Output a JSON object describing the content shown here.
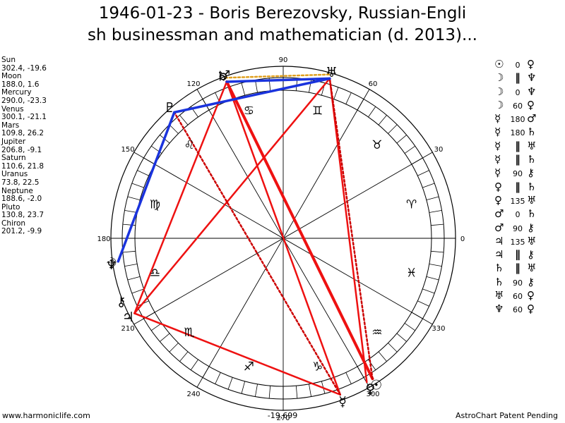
{
  "title": {
    "line1": "1946-01-23 - Boris Berezovsky, Russian-Engli",
    "line2": "sh businessman and mathematician (d. 2013)..."
  },
  "planets": [
    {
      "name": "Sun",
      "coords": "302.4, -19.6",
      "lon": 302.4,
      "glyph": "☉"
    },
    {
      "name": "Moon",
      "coords": "188.0, 1.6",
      "lon": 188.0,
      "glyph": "☽"
    },
    {
      "name": "Mercury",
      "coords": "290.0, -23.3",
      "lon": 290.0,
      "glyph": "☿"
    },
    {
      "name": "Venus",
      "coords": "300.1, -21.1",
      "lon": 300.1,
      "glyph": "♀"
    },
    {
      "name": "Mars",
      "coords": "109.8, 26.2",
      "lon": 109.8,
      "glyph": "♂"
    },
    {
      "name": "Jupiter",
      "coords": "206.8, -9.1",
      "lon": 206.8,
      "glyph": "♃"
    },
    {
      "name": "Saturn",
      "coords": "110.6, 21.8",
      "lon": 110.6,
      "glyph": "♄"
    },
    {
      "name": "Uranus",
      "coords": "73.8, 22.5",
      "lon": 73.8,
      "glyph": "♅"
    },
    {
      "name": "Neptune",
      "coords": "188.6, -2.0",
      "lon": 188.6,
      "glyph": "♆"
    },
    {
      "name": "Pluto",
      "coords": "130.8, 23.7",
      "lon": 130.8,
      "glyph": "♇"
    },
    {
      "name": "Chiron",
      "coords": "201.2, -9.9",
      "lon": 201.2,
      "glyph": "⚷"
    }
  ],
  "aspects": [
    {
      "a": "☉",
      "asp": "0",
      "b": "♀",
      "sym": false
    },
    {
      "a": "☽",
      "asp": "‖",
      "b": "♆",
      "sym": true
    },
    {
      "a": "☽",
      "asp": "0",
      "b": "♆",
      "sym": false
    },
    {
      "a": "☽",
      "asp": "60",
      "b": "♀",
      "sym": false
    },
    {
      "a": "☿",
      "asp": "180",
      "b": "♂",
      "sym": false
    },
    {
      "a": "☿",
      "asp": "180",
      "b": "♄",
      "sym": false
    },
    {
      "a": "☿",
      "asp": "‖",
      "b": "♅",
      "sym": true
    },
    {
      "a": "☿",
      "asp": "‖",
      "b": "♄",
      "sym": true
    },
    {
      "a": "☿",
      "asp": "90",
      "b": "⚷",
      "sym": false
    },
    {
      "a": "♀",
      "asp": "‖",
      "b": "♄",
      "sym": true
    },
    {
      "a": "♀",
      "asp": "135",
      "b": "♅",
      "sym": false
    },
    {
      "a": "♂",
      "asp": "0",
      "b": "♄",
      "sym": false
    },
    {
      "a": "♂",
      "asp": "90",
      "b": "⚷",
      "sym": false
    },
    {
      "a": "♃",
      "asp": "135",
      "b": "♅",
      "sym": false
    },
    {
      "a": "♃",
      "asp": "∥",
      "b": "⚷",
      "sym": true
    },
    {
      "a": "♄",
      "asp": "‖",
      "b": "♅",
      "sym": true
    },
    {
      "a": "♄",
      "asp": "90",
      "b": "⚷",
      "sym": false
    },
    {
      "a": "♅",
      "asp": "60",
      "b": "♀",
      "sym": false
    },
    {
      "a": "♆",
      "asp": "60",
      "b": "♀",
      "sym": false
    }
  ],
  "degree_labels": [
    {
      "deg": 0,
      "text": "0"
    },
    {
      "deg": 30,
      "text": "30"
    },
    {
      "deg": 60,
      "text": "60"
    },
    {
      "deg": 90,
      "text": "90"
    },
    {
      "deg": 120,
      "text": "120"
    },
    {
      "deg": 150,
      "text": "150"
    },
    {
      "deg": 180,
      "text": "180"
    },
    {
      "deg": 210,
      "text": "210"
    },
    {
      "deg": 240,
      "text": "240"
    },
    {
      "deg": 270,
      "text": "270"
    },
    {
      "deg": 300,
      "text": "300"
    },
    {
      "deg": 330,
      "text": "330"
    }
  ],
  "signs": [
    "♈",
    "♉",
    "♊",
    "♋",
    "♌",
    "♍",
    "♎",
    "♏",
    "♐",
    "♑",
    "♒",
    "♓"
  ],
  "aspect_lines": [
    {
      "from": 302.4,
      "to": 109.8,
      "color": "#ee1111",
      "width": 4,
      "dash": false
    },
    {
      "from": 290.0,
      "to": 109.8,
      "color": "#ee1111",
      "width": 2.5,
      "dash": false
    },
    {
      "from": 290.0,
      "to": 206.8,
      "color": "#ee1111",
      "width": 2.5,
      "dash": false
    },
    {
      "from": 206.8,
      "to": 73.8,
      "color": "#ee1111",
      "width": 2.5,
      "dash": false
    },
    {
      "from": 206.8,
      "to": 109.8,
      "color": "#ee1111",
      "width": 2.5,
      "dash": false
    },
    {
      "from": 300.1,
      "to": 73.8,
      "color": "#ee1111",
      "width": 2.5,
      "dash": false
    },
    {
      "from": 290.0,
      "to": 130.8,
      "color": "#cc0000",
      "width": 2.5,
      "dash": true
    },
    {
      "from": 302.4,
      "to": 73.8,
      "color": "#cc0000",
      "width": 2.5,
      "dash": true
    },
    {
      "from": 109.8,
      "to": 73.8,
      "color": "#1a33dd",
      "width": 3.5,
      "dash": false
    },
    {
      "from": 130.8,
      "to": 73.8,
      "color": "#1a33dd",
      "width": 3.5,
      "dash": false
    },
    {
      "from": 188.0,
      "to": 130.8,
      "color": "#1a33dd",
      "width": 3.5,
      "dash": false
    },
    {
      "from": 109.8,
      "to": 73.8,
      "color": "#e0a020",
      "width": 2.5,
      "dash": true,
      "offset": 6
    }
  ],
  "footer": {
    "left": "www.harmoniclife.com",
    "center": "-19,699",
    "right": "AstroChart Patent Pending"
  }
}
